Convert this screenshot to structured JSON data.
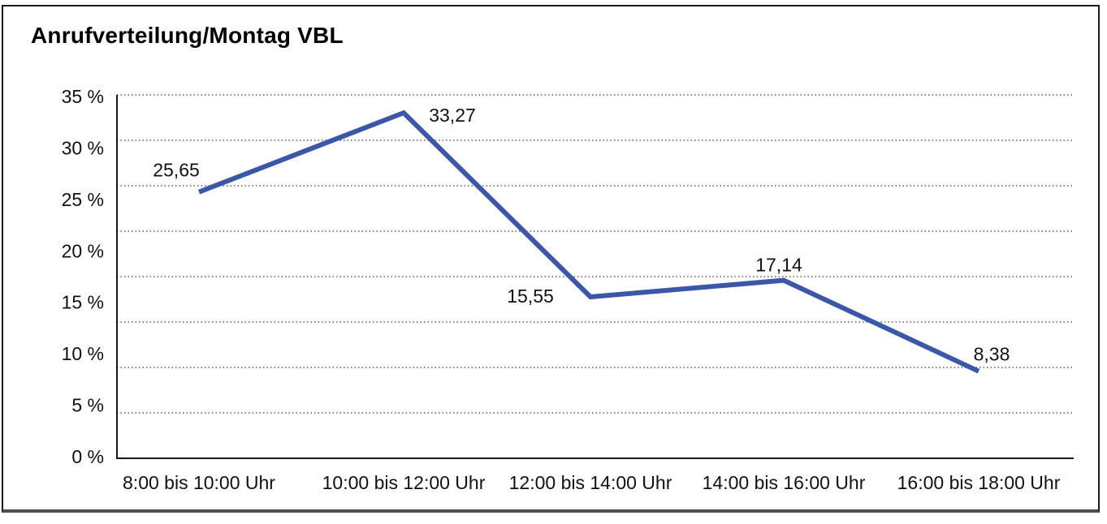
{
  "window": {
    "background": "#ffffff",
    "border_color": "#1a1a1a",
    "bottom_border_color": "#4f4f4f"
  },
  "chart_data": {
    "type": "line",
    "title": "Anrufverteilung/Montag VBL",
    "categories": [
      "8:00 bis 10:00 Uhr",
      "10:00 bis 12:00 Uhr",
      "12:00 bis 14:00 Uhr",
      "14:00 bis 16:00 Uhr",
      "16:00 bis 18:00 Uhr"
    ],
    "values": [
      25.65,
      33.27,
      15.55,
      17.14,
      8.38
    ],
    "value_labels": [
      "25,65",
      "33,27",
      "15,55",
      "17,14",
      "8,38"
    ],
    "y_tick_labels": [
      "35 %",
      "30 %",
      "25 %",
      "20 %",
      "15 %",
      "10 %",
      "5 %",
      "0 %"
    ],
    "ylim": [
      0,
      35
    ],
    "y_tick_step": 5,
    "xlabel": "",
    "ylabel": "",
    "legend": "none",
    "grid": "horizontal-dotted",
    "gridline_count": 9,
    "line_color": "#3A57A8",
    "axis_color": "#1a1a1a",
    "gridline_color": "#3c3c3c",
    "decimal_separator": ","
  }
}
